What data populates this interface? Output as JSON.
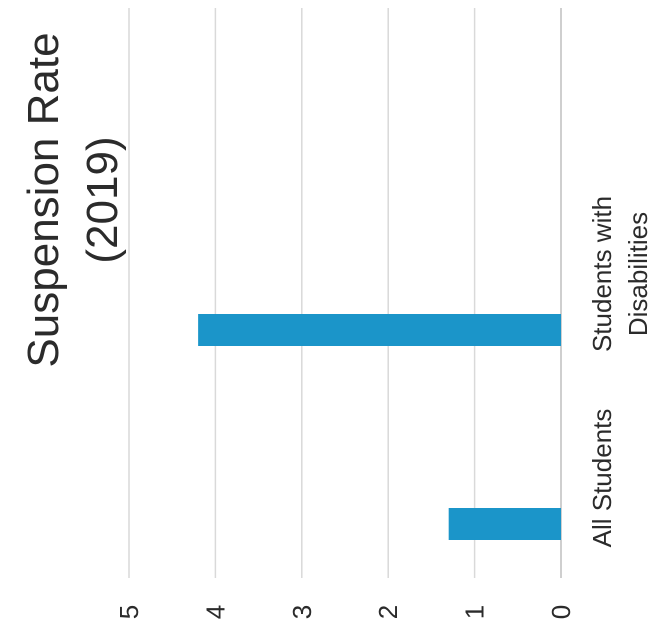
{
  "chart_data": {
    "type": "bar",
    "title_lines": [
      "Suspension Rate",
      "(2019)"
    ],
    "categories": [
      "All Students",
      "Students with Disabilities"
    ],
    "category_label_lines": [
      [
        "All Students"
      ],
      [
        "Students with",
        "Disabilities"
      ]
    ],
    "values": [
      1.3,
      4.2
    ],
    "ylim": [
      0,
      5
    ],
    "yticks": [
      "0",
      "1",
      "2",
      "3",
      "4",
      "5"
    ],
    "xlabel": "",
    "ylabel": "",
    "grid": true,
    "legend": "none",
    "bar_color": "#1b95c9"
  }
}
